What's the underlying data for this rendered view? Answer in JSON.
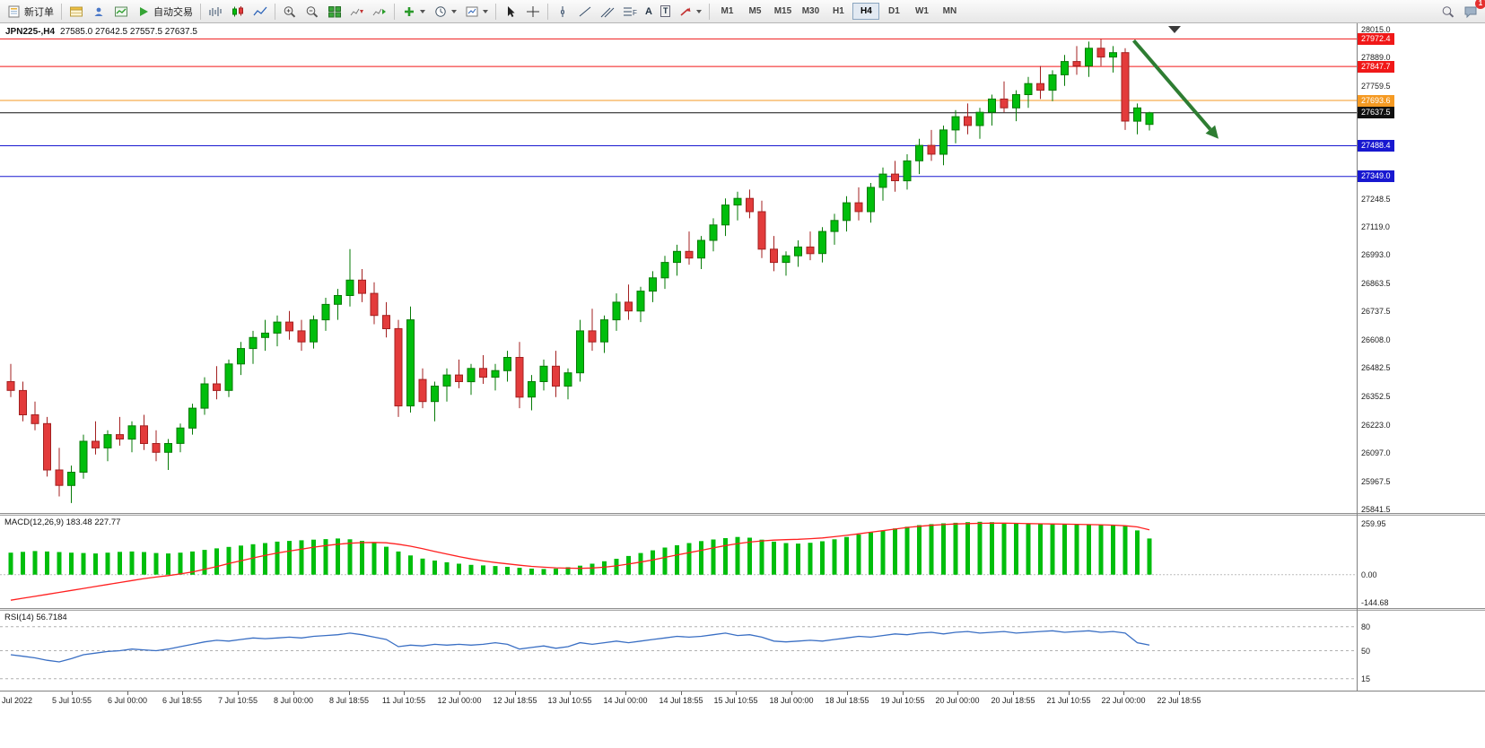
{
  "toolbar": {
    "new_order_label": "新订单",
    "auto_trading_label": "自动交易",
    "timeframes": [
      "M1",
      "M5",
      "M15",
      "M30",
      "H1",
      "H4",
      "D1",
      "W1",
      "MN"
    ],
    "active_timeframe": "H4",
    "text_tool_label": "A",
    "label_tool_label": "T",
    "fibo_tool_label": "F",
    "notification_count": "1"
  },
  "chart": {
    "symbol_period": "JPN225-,H4",
    "ohlc": "27585.0 27642.5 27557.5 27637.5"
  },
  "indicators": {
    "macd": {
      "text": "MACD(12,26,9) 183.48 227.77",
      "axis_labels": [
        "259.95",
        "0.00",
        "-144.68"
      ]
    },
    "rsi": {
      "text": "RSI(14) 56.7184",
      "axis_labels": [
        "80",
        "50",
        "15"
      ]
    }
  },
  "price_axis_labels": [
    "28015.0",
    "27889.0",
    "27759.5",
    "27248.5",
    "27119.0",
    "26993.0",
    "26863.5",
    "26737.5",
    "26608.0",
    "26482.5",
    "26352.5",
    "26223.0",
    "26097.0",
    "25967.5",
    "25841.5"
  ],
  "time_axis_labels": [
    "Jul 2022",
    "5 Jul 10:55",
    "6 Jul 00:00",
    "6 Jul 18:55",
    "7 Jul 10:55",
    "8 Jul 00:00",
    "8 Jul 18:55",
    "11 Jul 10:55",
    "12 Jul 00:00",
    "12 Jul 18:55",
    "13 Jul 10:55",
    "14 Jul 00:00",
    "14 Jul 18:55",
    "15 Jul 10:55",
    "18 Jul 00:00",
    "18 Jul 18:55",
    "19 Jul 10:55",
    "20 Jul 00:00",
    "20 Jul 18:55",
    "21 Jul 10:55",
    "22 Jul 00:00",
    "22 Jul 18:55"
  ],
  "chart_data": [
    {
      "type": "candlestick",
      "title": "JPN225-,H4",
      "ylim": [
        25825,
        28043
      ],
      "up_color": "#00BE0C",
      "up_border": "#067A06",
      "down_color": "#E33B3B",
      "down_border": "#A32020",
      "levels": [
        {
          "price": 27972.4,
          "label": "27972.4",
          "color": "#F01818"
        },
        {
          "price": 27847.7,
          "label": "27847.7",
          "color": "#F01818"
        },
        {
          "price": 27693.6,
          "label": "27693.6",
          "color": "#F59A23"
        },
        {
          "price": 27637.5,
          "label": "27637.5",
          "color": "#101010",
          "current": true
        },
        {
          "price": 27488.4,
          "label": "27488.4",
          "color": "#1818D0"
        },
        {
          "price": 27349.0,
          "label": "27349.0",
          "color": "#1818D0"
        }
      ],
      "arrow_annotation": {
        "color": "#2E7D32",
        "from": {
          "index": 93,
          "price": 27965
        },
        "to": {
          "index": 100,
          "price": 27520
        }
      },
      "candles": [
        [
          26420,
          26500,
          26350,
          26380
        ],
        [
          26380,
          26420,
          26240,
          26270
        ],
        [
          26270,
          26330,
          26200,
          26230
        ],
        [
          26230,
          26260,
          25990,
          26020
        ],
        [
          26020,
          26120,
          25900,
          25950
        ],
        [
          25950,
          26040,
          25870,
          26010
        ],
        [
          26010,
          26180,
          25980,
          26150
        ],
        [
          26150,
          26240,
          26090,
          26120
        ],
        [
          26120,
          26200,
          26060,
          26180
        ],
        [
          26180,
          26260,
          26130,
          26160
        ],
        [
          26160,
          26240,
          26100,
          26220
        ],
        [
          26220,
          26270,
          26110,
          26140
        ],
        [
          26140,
          26200,
          26060,
          26100
        ],
        [
          26100,
          26160,
          26020,
          26140
        ],
        [
          26140,
          26230,
          26100,
          26210
        ],
        [
          26210,
          26320,
          26180,
          26300
        ],
        [
          26300,
          26440,
          26270,
          26410
        ],
        [
          26410,
          26490,
          26340,
          26380
        ],
        [
          26380,
          26520,
          26350,
          26500
        ],
        [
          26500,
          26600,
          26450,
          26570
        ],
        [
          26570,
          26650,
          26500,
          26620
        ],
        [
          26620,
          26700,
          26560,
          26640
        ],
        [
          26640,
          26720,
          26580,
          26690
        ],
        [
          26690,
          26740,
          26610,
          26650
        ],
        [
          26650,
          26700,
          26560,
          26600
        ],
        [
          26600,
          26720,
          26570,
          26700
        ],
        [
          26700,
          26800,
          26650,
          26770
        ],
        [
          26770,
          26840,
          26700,
          26810
        ],
        [
          26810,
          27020,
          26760,
          26880
        ],
        [
          26880,
          26930,
          26780,
          26820
        ],
        [
          26820,
          26870,
          26680,
          26720
        ],
        [
          26720,
          26780,
          26620,
          26660
        ],
        [
          26660,
          26700,
          26260,
          26310
        ],
        [
          26310,
          26760,
          26280,
          26700
        ],
        [
          26430,
          26480,
          26300,
          26330
        ],
        [
          26330,
          26420,
          26240,
          26400
        ],
        [
          26400,
          26480,
          26330,
          26450
        ],
        [
          26450,
          26520,
          26390,
          26420
        ],
        [
          26420,
          26500,
          26360,
          26480
        ],
        [
          26480,
          26540,
          26410,
          26440
        ],
        [
          26440,
          26500,
          26380,
          26470
        ],
        [
          26470,
          26560,
          26420,
          26530
        ],
        [
          26530,
          26600,
          26300,
          26350
        ],
        [
          26350,
          26450,
          26290,
          26420
        ],
        [
          26420,
          26520,
          26380,
          26490
        ],
        [
          26490,
          26560,
          26350,
          26400
        ],
        [
          26400,
          26480,
          26340,
          26460
        ],
        [
          26460,
          26700,
          26420,
          26650
        ],
        [
          26650,
          26750,
          26560,
          26600
        ],
        [
          26600,
          26720,
          26550,
          26700
        ],
        [
          26700,
          26820,
          26650,
          26780
        ],
        [
          26780,
          26860,
          26700,
          26740
        ],
        [
          26740,
          26850,
          26690,
          26830
        ],
        [
          26830,
          26920,
          26780,
          26890
        ],
        [
          26890,
          26990,
          26840,
          26960
        ],
        [
          26960,
          27040,
          26900,
          27010
        ],
        [
          27010,
          27100,
          26950,
          26980
        ],
        [
          26980,
          27080,
          26930,
          27060
        ],
        [
          27060,
          27160,
          27010,
          27130
        ],
        [
          27130,
          27250,
          27080,
          27220
        ],
        [
          27220,
          27280,
          27150,
          27250
        ],
        [
          27250,
          27290,
          27160,
          27190
        ],
        [
          27190,
          27240,
          26980,
          27020
        ],
        [
          27020,
          27080,
          26920,
          26960
        ],
        [
          26960,
          27010,
          26900,
          26990
        ],
        [
          26990,
          27060,
          26940,
          27030
        ],
        [
          27030,
          27100,
          26970,
          27000
        ],
        [
          27000,
          27120,
          26960,
          27100
        ],
        [
          27100,
          27180,
          27040,
          27150
        ],
        [
          27150,
          27260,
          27100,
          27230
        ],
        [
          27230,
          27300,
          27150,
          27190
        ],
        [
          27190,
          27320,
          27140,
          27300
        ],
        [
          27300,
          27390,
          27240,
          27360
        ],
        [
          27360,
          27420,
          27280,
          27330
        ],
        [
          27330,
          27450,
          27290,
          27420
        ],
        [
          27420,
          27520,
          27360,
          27490
        ],
        [
          27490,
          27560,
          27420,
          27450
        ],
        [
          27450,
          27580,
          27400,
          27560
        ],
        [
          27560,
          27650,
          27500,
          27620
        ],
        [
          27620,
          27680,
          27540,
          27580
        ],
        [
          27580,
          27660,
          27520,
          27640
        ],
        [
          27640,
          27720,
          27580,
          27700
        ],
        [
          27700,
          27780,
          27640,
          27660
        ],
        [
          27660,
          27740,
          27600,
          27720
        ],
        [
          27720,
          27800,
          27660,
          27770
        ],
        [
          27770,
          27850,
          27700,
          27740
        ],
        [
          27740,
          27830,
          27690,
          27810
        ],
        [
          27810,
          27900,
          27760,
          27870
        ],
        [
          27870,
          27940,
          27810,
          27850
        ],
        [
          27850,
          27960,
          27800,
          27930
        ],
        [
          27930,
          27972,
          27850,
          27890
        ],
        [
          27890,
          27940,
          27820,
          27910
        ],
        [
          27910,
          27930,
          27560,
          27600
        ],
        [
          27600,
          27680,
          27540,
          27660
        ],
        [
          27585,
          27642.5,
          27557.5,
          27637.5
        ]
      ]
    },
    {
      "type": "bar",
      "name": "MACD",
      "params": [
        12,
        26,
        9
      ],
      "current_values": [
        183.48,
        227.77
      ],
      "ylim": [
        -170,
        300
      ],
      "histogram_color": "#00BE0C",
      "signal_color": "#FF2020",
      "axis_labels": [
        259.95,
        0.0,
        -144.68
      ],
      "histogram": [
        112,
        116,
        120,
        118,
        115,
        112,
        110,
        108,
        112,
        116,
        118,
        115,
        110,
        108,
        112,
        118,
        126,
        134,
        141,
        148,
        155,
        161,
        168,
        172,
        175,
        178,
        181,
        184,
        180,
        172,
        161,
        142,
        118,
        98,
        82,
        72,
        63,
        56,
        50,
        47,
        44,
        40,
        35,
        31,
        29,
        31,
        38,
        46,
        56,
        68,
        81,
        95,
        110,
        124,
        138,
        150,
        161,
        171,
        179,
        186,
        192,
        188,
        178,
        168,
        161,
        158,
        162,
        170,
        180,
        192,
        204,
        215,
        225,
        235,
        244,
        252,
        257,
        261,
        264,
        267,
        269,
        267,
        264,
        262,
        260,
        258,
        257,
        256,
        255,
        254,
        253,
        251,
        248,
        225,
        184
      ],
      "signal": [
        -130,
        -120,
        -110,
        -100,
        -90,
        -80,
        -70,
        -60,
        -50,
        -40,
        -30,
        -20,
        -12,
        -5,
        4,
        14,
        27,
        41,
        57,
        71,
        85,
        98,
        110,
        120,
        130,
        140,
        148,
        155,
        160,
        163,
        164,
        162,
        155,
        145,
        132,
        118,
        105,
        92,
        80,
        70,
        62,
        55,
        48,
        42,
        38,
        35,
        33,
        32,
        34,
        38,
        45,
        54,
        64,
        75,
        88,
        100,
        112,
        124,
        136,
        148,
        158,
        166,
        172,
        176,
        178,
        180,
        183,
        187,
        193,
        200,
        208,
        216,
        224,
        232,
        240,
        246,
        251,
        255,
        258,
        260,
        261,
        262,
        262,
        261,
        260,
        259,
        258,
        257,
        256,
        255,
        254,
        252,
        249,
        243,
        228
      ]
    },
    {
      "type": "line",
      "name": "RSI",
      "params": [
        14
      ],
      "current_value": 56.7184,
      "ylim": [
        0,
        100
      ],
      "line_color": "#3A6FC4",
      "level_lines": [
        80,
        50,
        15
      ],
      "values": [
        45,
        43,
        41,
        38,
        36,
        40,
        45,
        47,
        49,
        50,
        52,
        51,
        50,
        52,
        55,
        58,
        61,
        63,
        62,
        64,
        66,
        65,
        66,
        67,
        66,
        68,
        69,
        70,
        72,
        70,
        67,
        64,
        55,
        57,
        56,
        58,
        57,
        58,
        57,
        58,
        60,
        58,
        52,
        54,
        56,
        53,
        55,
        60,
        58,
        60,
        62,
        60,
        62,
        64,
        66,
        68,
        67,
        68,
        70,
        72,
        69,
        70,
        67,
        62,
        61,
        62,
        63,
        62,
        64,
        66,
        68,
        67,
        69,
        71,
        70,
        72,
        73,
        71,
        73,
        74,
        72,
        73,
        74,
        72,
        73,
        74,
        75,
        73,
        74,
        75,
        73,
        74,
        72,
        60,
        57
      ]
    }
  ]
}
